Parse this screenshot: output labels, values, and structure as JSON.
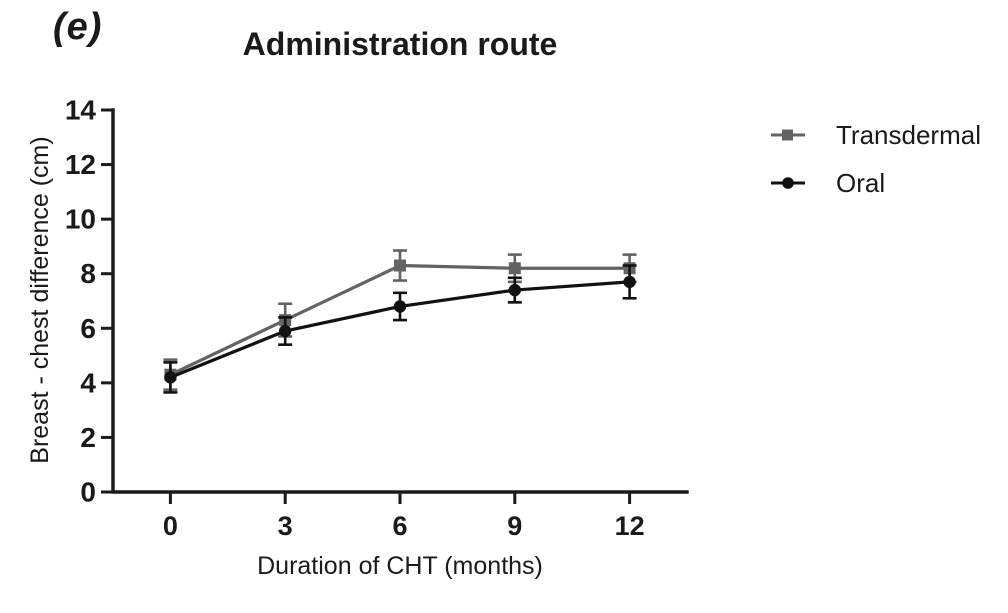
{
  "panel_label": "(e)",
  "chart_data": {
    "type": "line",
    "title": "Administration route",
    "xlabel": "Duration of CHT (months)",
    "ylabel": "Breast - chest difference (cm)",
    "x": [
      0,
      3,
      6,
      9,
      12
    ],
    "xticks": [
      0,
      3,
      6,
      9,
      12
    ],
    "yticks": [
      0,
      2,
      4,
      6,
      8,
      10,
      12,
      14
    ],
    "xlim": [
      -1.5,
      13.5
    ],
    "ylim": [
      0,
      14
    ],
    "grid": false,
    "legend_position": "right",
    "error_bars": true,
    "axis_color": "#1a1a1a",
    "series": [
      {
        "name": "Transdermal",
        "marker": "square",
        "color": "#636363",
        "values": [
          4.3,
          6.3,
          8.3,
          8.2,
          8.2
        ],
        "errors": [
          0.55,
          0.6,
          0.55,
          0.5,
          0.5
        ]
      },
      {
        "name": "Oral",
        "marker": "circle",
        "color": "#111111",
        "values": [
          4.2,
          5.9,
          6.8,
          7.4,
          7.7
        ],
        "errors": [
          0.55,
          0.5,
          0.5,
          0.45,
          0.6
        ]
      }
    ]
  }
}
